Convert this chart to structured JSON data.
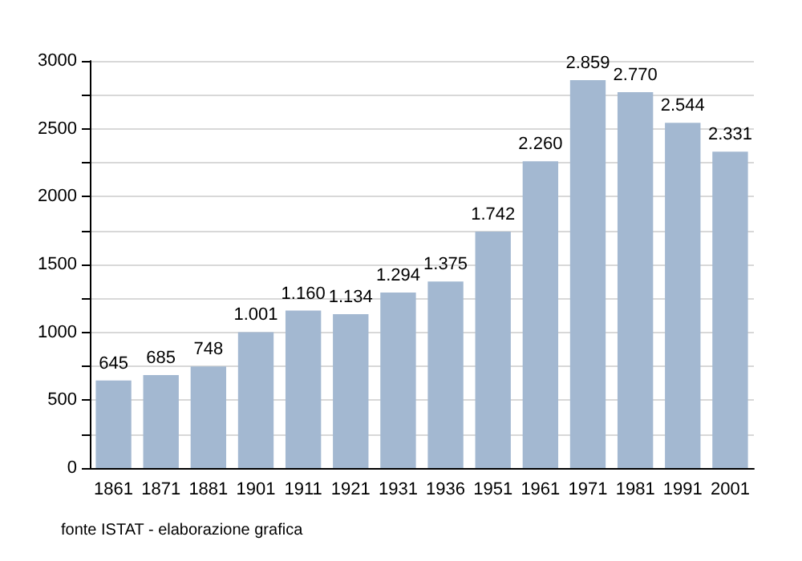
{
  "chart_data": {
    "type": "bar",
    "categories": [
      "1861",
      "1871",
      "1881",
      "1901",
      "1911",
      "1921",
      "1931",
      "1936",
      "1951",
      "1961",
      "1971",
      "1981",
      "1991",
      "2001"
    ],
    "values": [
      645,
      685,
      748,
      1001,
      1160,
      1134,
      1294,
      1375,
      1742,
      2260,
      2859,
      2770,
      2544,
      2331
    ],
    "value_labels": [
      "645",
      "685",
      "748",
      "1.001",
      "1.160",
      "1.134",
      "1.294",
      "1.375",
      "1.742",
      "2.260",
      "2.859",
      "2.770",
      "2.544",
      "2.331"
    ],
    "color": "#a3b8d1",
    "ylim": [
      0,
      3000
    ],
    "yticks": [
      0,
      {
        "value": 250,
        "label": null
      },
      500,
      {
        "value": 750,
        "label": null
      },
      1000,
      {
        "value": 1250,
        "label": null
      },
      1500,
      {
        "value": 1750,
        "label": null
      },
      2000,
      {
        "value": 2250,
        "label": null
      },
      2500,
      {
        "value": 2750,
        "label": null
      },
      3000
    ],
    "grid": "y",
    "annotations": [
      "fonte ISTAT - elaborazione grafica"
    ]
  }
}
